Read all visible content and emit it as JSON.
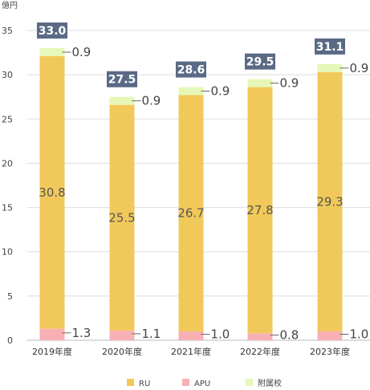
{
  "chart_data": {
    "type": "bar",
    "stacked": true,
    "unit_label": "億円",
    "categories": [
      "2019年度",
      "2020年度",
      "2021年度",
      "2022年度",
      "2023年度"
    ],
    "series": [
      {
        "name": "APU",
        "values": [
          1.3,
          1.1,
          1.0,
          0.8,
          1.0
        ],
        "color": "#f9b0b4"
      },
      {
        "name": "RU",
        "values": [
          30.8,
          25.5,
          26.7,
          27.8,
          29.3
        ],
        "color": "#f1c95a"
      },
      {
        "name": "附属校",
        "values": [
          0.9,
          0.9,
          0.9,
          0.9,
          0.9
        ],
        "color": "#e6f7b8"
      }
    ],
    "totals": [
      "33.0",
      "27.5",
      "28.6",
      "29.5",
      "31.1"
    ],
    "ylim": [
      0,
      35
    ],
    "yticks": [
      0,
      5,
      10,
      15,
      20,
      25,
      30,
      35
    ],
    "grid": true,
    "legend_position": "bottom",
    "legend_order": [
      "RU",
      "APU",
      "附属校"
    ],
    "total_badge_color": "#5a6a85"
  }
}
